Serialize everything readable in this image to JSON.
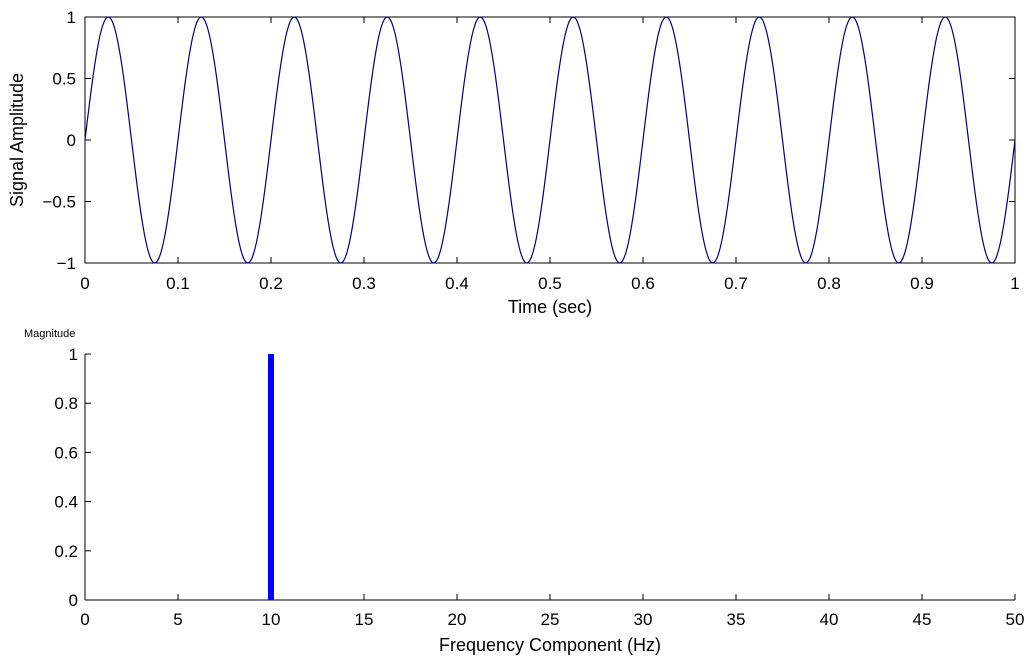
{
  "colors": {
    "sine_line": "#000080",
    "stem_bar": "#0000ff",
    "axes": "#000000",
    "background": "#ffffff"
  },
  "chart_data": [
    {
      "type": "line",
      "title": "",
      "xlabel": "Time (sec)",
      "ylabel": "Signal Amplitude",
      "xlim": [
        0,
        1
      ],
      "ylim": [
        -1,
        1
      ],
      "grid": false,
      "x_ticks": [
        0,
        0.1,
        0.2,
        0.3,
        0.4,
        0.5,
        0.6,
        0.7,
        0.8,
        0.9,
        1
      ],
      "x_tick_labels": [
        "0",
        "0.1",
        "0.2",
        "0.3",
        "0.4",
        "0.5",
        "0.6",
        "0.7",
        "0.8",
        "0.9",
        "1"
      ],
      "y_ticks": [
        -1,
        -0.5,
        0,
        0.5,
        1
      ],
      "y_tick_labels": [
        "−1",
        "−0.5",
        "0",
        "0.5",
        "1"
      ],
      "series": [
        {
          "function": "sin(2*pi*f*t)",
          "frequency_hz": 10,
          "amplitude": 1,
          "x_start": 0,
          "x_end": 1
        }
      ]
    },
    {
      "type": "bar",
      "title": "",
      "xlabel": "Frequency Component (Hz)",
      "ylabel": "Magnitude",
      "xlim": [
        0,
        50
      ],
      "ylim": [
        0,
        1
      ],
      "grid": false,
      "x_ticks": [
        0,
        5,
        10,
        15,
        20,
        25,
        30,
        35,
        40,
        45,
        50
      ],
      "x_tick_labels": [
        "0",
        "5",
        "10",
        "15",
        "20",
        "25",
        "30",
        "35",
        "40",
        "45",
        "50"
      ],
      "y_ticks": [
        0,
        0.2,
        0.4,
        0.6,
        0.8,
        1
      ],
      "y_tick_labels": [
        "0",
        "0.2",
        "0.4",
        "0.6",
        "0.8",
        "1"
      ],
      "x": [
        10
      ],
      "values": [
        1
      ]
    }
  ]
}
